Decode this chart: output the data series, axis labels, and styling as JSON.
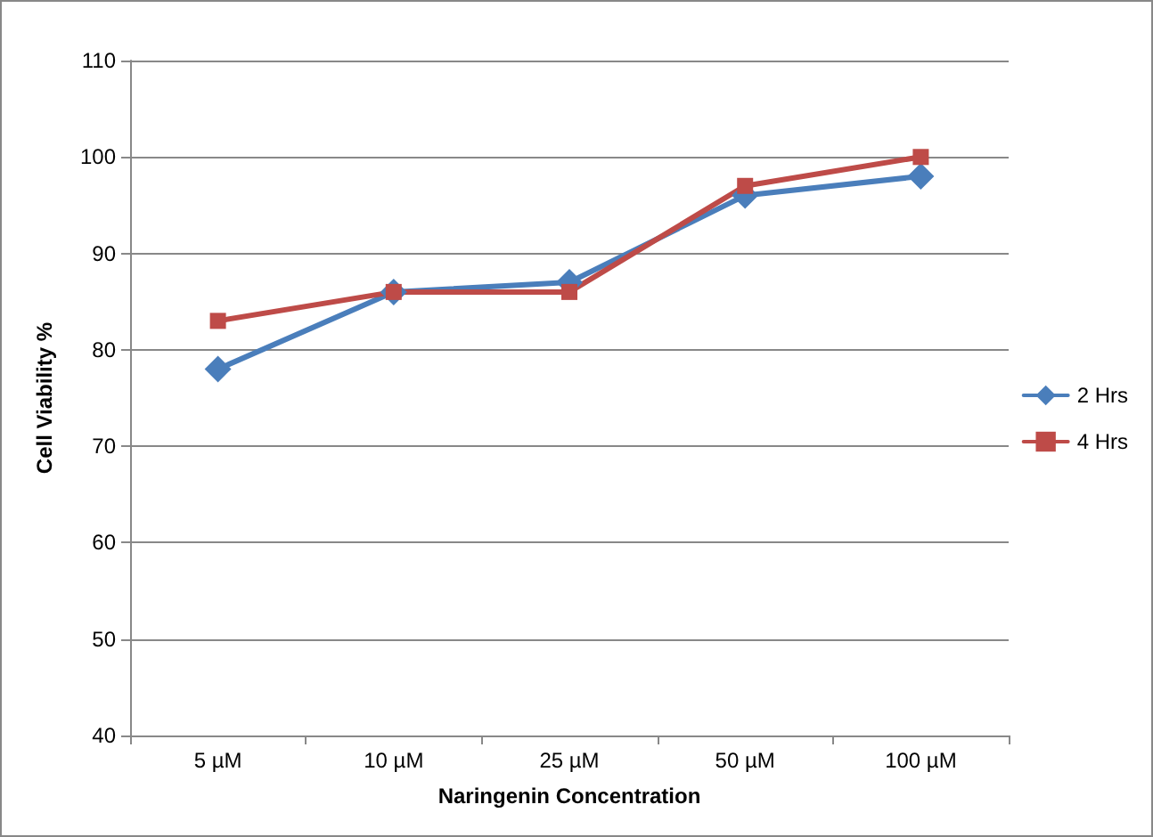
{
  "chart_data": {
    "type": "line",
    "xlabel": "Naringenin Concentration",
    "ylabel": "Cell Viability %",
    "categories": [
      "5 µM",
      "10 µM",
      "25 µM",
      "50 µM",
      "100 µM"
    ],
    "series": [
      {
        "name": "2 Hrs",
        "color": "#4a7ebb",
        "marker": "diamond",
        "values": [
          78,
          86,
          87,
          96,
          98
        ]
      },
      {
        "name": "4 Hrs",
        "color": "#be4b48",
        "marker": "square",
        "values": [
          83,
          86,
          86,
          97,
          100
        ]
      }
    ],
    "ylim": [
      40,
      110
    ],
    "yticks": [
      40,
      50,
      60,
      70,
      80,
      90,
      100,
      110
    ],
    "grid": "y",
    "legend": "right",
    "line_style": "solid"
  }
}
